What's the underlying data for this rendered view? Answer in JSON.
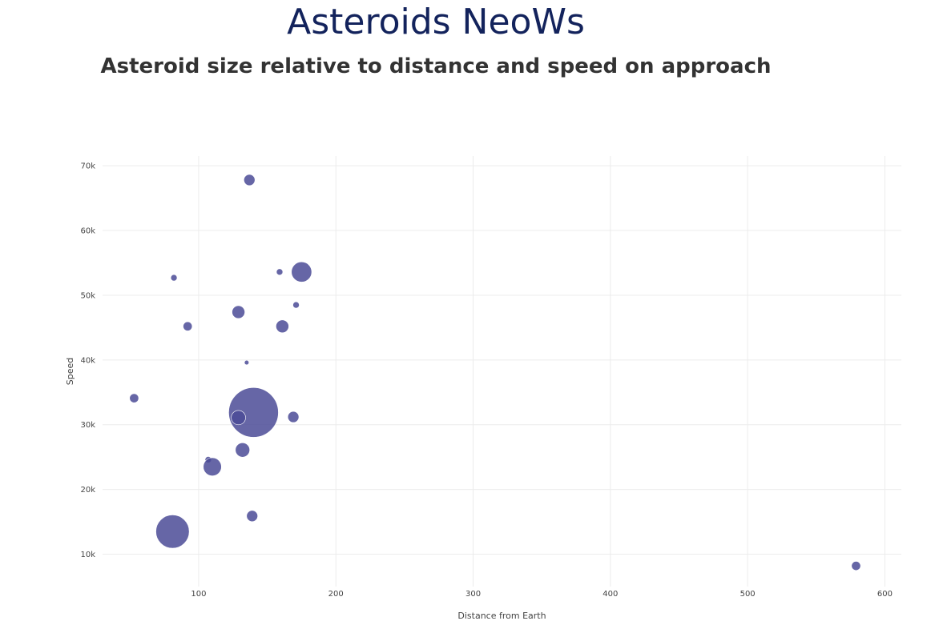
{
  "header": {
    "title": "Asteroids NeoWs",
    "subtitle": "Asteroid size relative to distance and speed on approach"
  },
  "chart_data": {
    "type": "scatter",
    "title": "",
    "xlabel": "Distance from Earth",
    "ylabel": "Speed",
    "xlim": [
      30,
      612
    ],
    "ylim": [
      5000,
      71500
    ],
    "x_ticks": [
      100,
      200,
      300,
      400,
      500,
      600
    ],
    "x_tick_labels": [
      "100",
      "200",
      "300",
      "400",
      "500",
      "600"
    ],
    "y_ticks": [
      10000,
      20000,
      30000,
      40000,
      50000,
      60000,
      70000
    ],
    "y_tick_labels": [
      "10k",
      "20k",
      "30k",
      "40k",
      "50k",
      "60k",
      "70k"
    ],
    "grid": true,
    "marker_color": "#4b4b96",
    "x": [
      137,
      175,
      82,
      159,
      129,
      171,
      92,
      161,
      135,
      53,
      140,
      129,
      169,
      132,
      107,
      110,
      139,
      81,
      579
    ],
    "y": [
      67800,
      53600,
      52700,
      53600,
      47400,
      48500,
      45200,
      45200,
      39600,
      34100,
      31900,
      31100,
      31200,
      26100,
      24600,
      23500,
      15900,
      13500,
      8200
    ],
    "size": [
      0.3,
      1.0,
      0.1,
      0.1,
      0.4,
      0.1,
      0.2,
      0.4,
      0.05,
      0.2,
      6.0,
      0.5,
      0.3,
      0.5,
      0.1,
      0.8,
      0.3,
      2.7,
      0.2
    ]
  }
}
